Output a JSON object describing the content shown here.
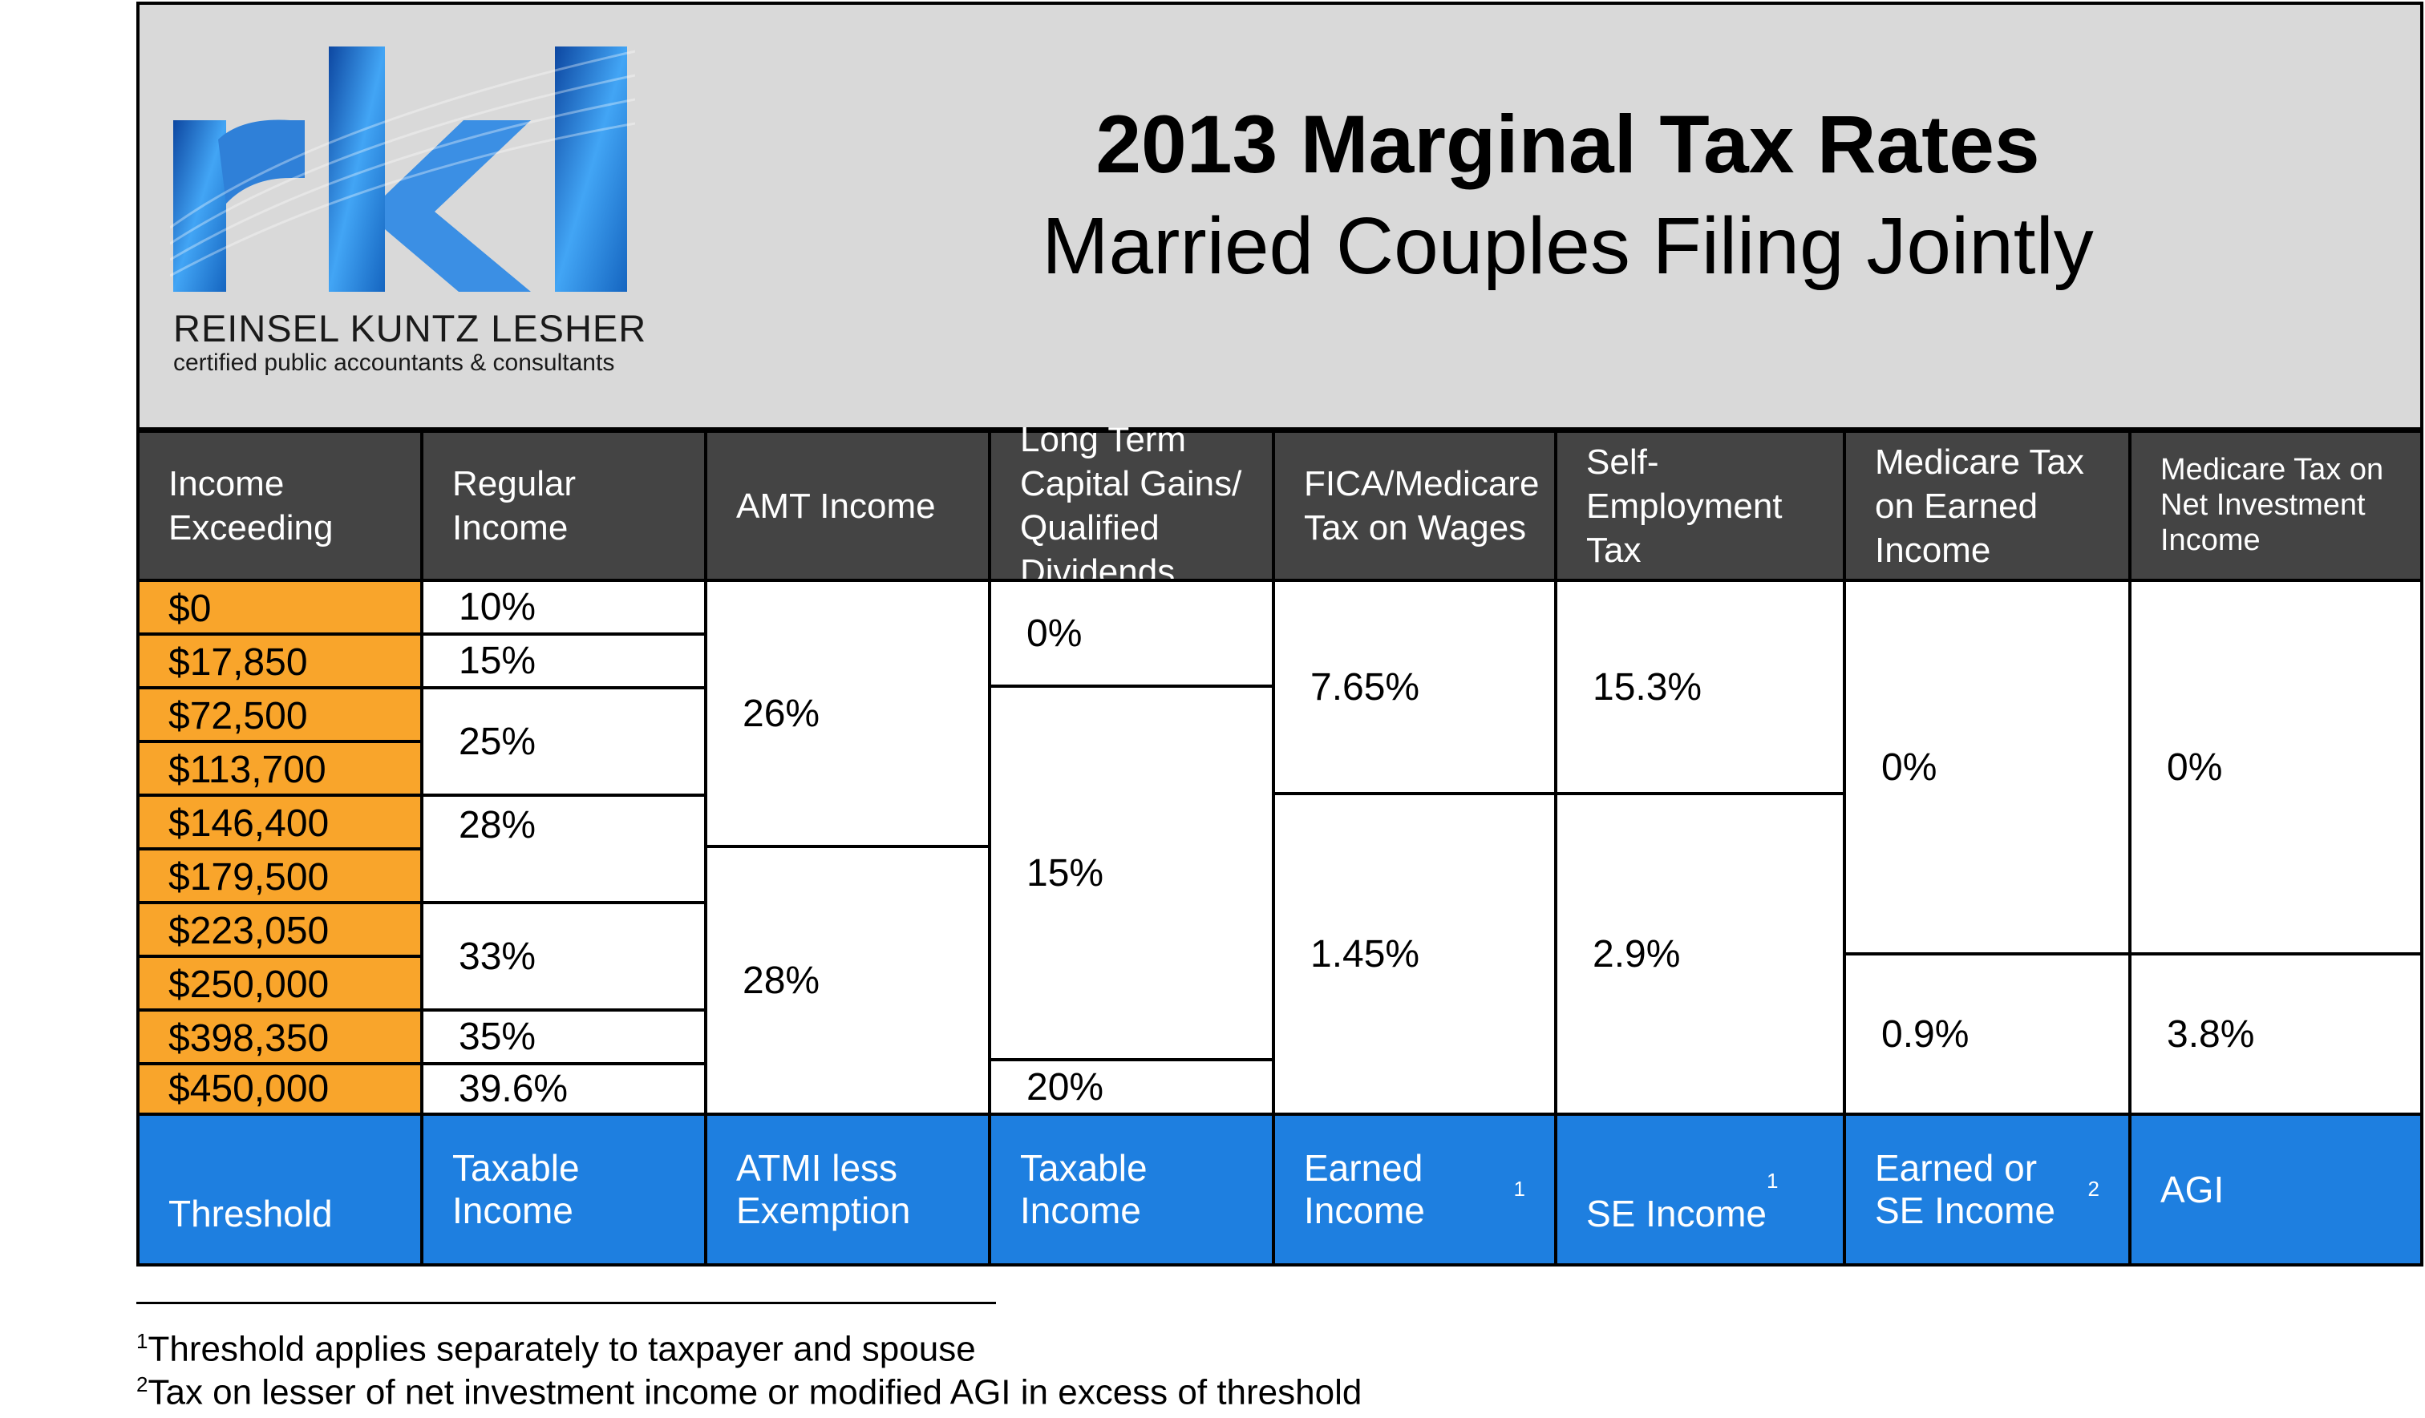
{
  "header": {
    "logo_text": "rkl",
    "brand_name": "REINSEL KUNTZ LESHER",
    "brand_tagline": "certified public accountants & consultants",
    "title": "2013 Marginal Tax Rates",
    "subtitle": "Married Couples Filing Jointly"
  },
  "columns": [
    "Income Exceeding",
    "Regular Income",
    "AMT Income",
    "Long Term Capital Gains/ Qualified Dividends",
    "FICA/Medicare Tax on Wages",
    "Self-Employment Tax",
    "Medicare Tax on Earned Income",
    "Medicare Tax on Net Investment Income"
  ],
  "thresholds": [
    "$0",
    "$17,850",
    "$72,500",
    "$113,700",
    "$146,400",
    "$179,500",
    "$223,050",
    "$250,000",
    "$398,350",
    "$450,000"
  ],
  "regular": [
    "10%",
    "15%",
    "25%",
    "28%",
    "33%",
    "35%",
    "39.6%"
  ],
  "amt": [
    "26%",
    "28%"
  ],
  "ltcg": [
    "0%",
    "15%",
    "20%"
  ],
  "fica": [
    "7.65%",
    "1.45%"
  ],
  "se": [
    "15.3%",
    "2.9%"
  ],
  "medicare_earned": [
    "0%",
    "0.9%"
  ],
  "medicare_nii": [
    "0%",
    "3.8%"
  ],
  "footer": {
    "threshold": "Threshold",
    "regular": "Taxable Income",
    "amt": "ATMI less Exemption",
    "ltcg": "Taxable Income",
    "fica": "Earned Income",
    "fica_sup": "1",
    "se": "SE Income",
    "se_sup": "1",
    "medicare_earned": "Earned or SE Income",
    "medicare_earned_sup": "2",
    "medicare_nii": "AGI"
  },
  "notes": {
    "n1_mark": "1",
    "n1": "Threshold applies separately to taxpayer and spouse",
    "n2_mark": "2",
    "n2": "Tax on lesser of net investment income or modified AGI in excess of threshold"
  },
  "colors": {
    "header_bg": "#d9d9d9",
    "column_header_bg": "#444444",
    "threshold_bg": "#f9a52b",
    "footer_bg": "#1e7fe0",
    "logo_blue": "#1565c0"
  }
}
